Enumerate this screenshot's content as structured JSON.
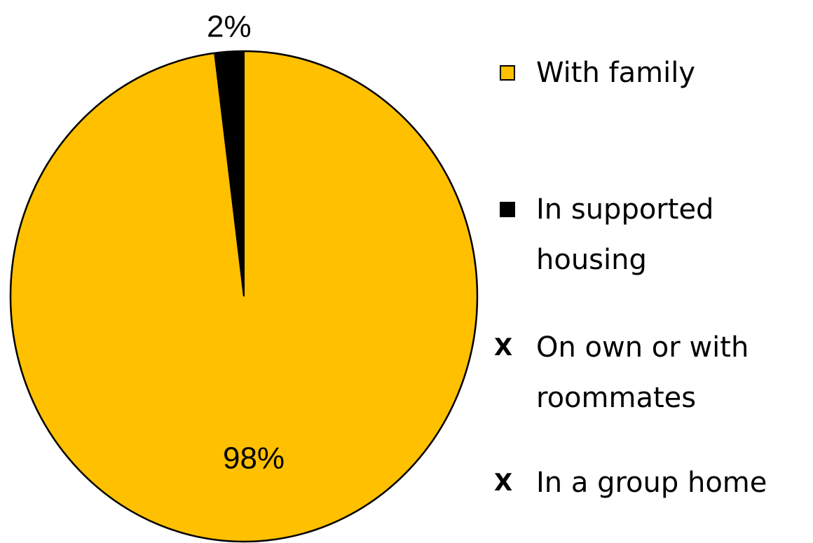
{
  "chart_data": {
    "type": "pie",
    "categories": [
      "With family",
      "In supported housing",
      "On own or with roommates",
      "In a group home"
    ],
    "values": [
      98,
      2,
      0,
      0
    ],
    "value_labels": [
      "98%",
      "2%",
      null,
      null
    ],
    "colors": [
      "#FFC000",
      "#000000",
      "#000000",
      "#000000"
    ],
    "legend_markers": [
      "square",
      "square",
      "X",
      "X"
    ],
    "legend": "right"
  }
}
